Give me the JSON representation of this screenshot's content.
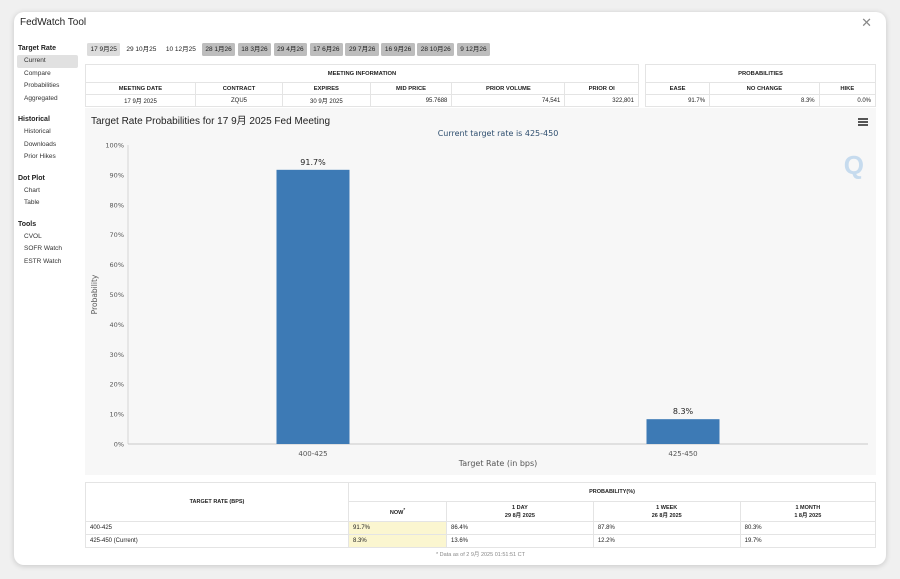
{
  "app": {
    "title": "FedWatch Tool"
  },
  "sidebar": {
    "sections": [
      {
        "heading": "Target Rate",
        "items": [
          "Current",
          "Compare",
          "Probabilities",
          "Aggregated"
        ]
      },
      {
        "heading": "Historical",
        "items": [
          "Historical",
          "Downloads",
          "Prior Hikes"
        ]
      },
      {
        "heading": "Dot Plot",
        "items": [
          "Chart",
          "Table"
        ]
      },
      {
        "heading": "Tools",
        "items": [
          "CVOL",
          "SOFR Watch",
          "ESTR Watch"
        ]
      }
    ],
    "active_item": "Current"
  },
  "tabs": [
    "17 9月25",
    "29 10月25",
    "10 12月25",
    "28 1月26",
    "18 3月26",
    "29 4月26",
    "17 6月26",
    "29 7月26",
    "16 9月26",
    "28 10月26",
    "9 12月26"
  ],
  "meeting_info": {
    "group_label": "MEETING INFORMATION",
    "headers": [
      "MEETING DATE",
      "CONTRACT",
      "EXPIRES",
      "MID PRICE",
      "PRIOR VOLUME",
      "PRIOR OI"
    ],
    "row": [
      "17 9月 2025",
      "ZQU5",
      "30 9月 2025",
      "95.7688",
      "74,541",
      "322,801"
    ]
  },
  "probabilities": {
    "group_label": "PROBABILITIES",
    "headers": [
      "EASE",
      "NO CHANGE",
      "HIKE"
    ],
    "row": [
      "91.7%",
      "8.3%",
      "0.0%"
    ]
  },
  "chart": {
    "title": "Target Rate Probabilities for 17 9月 2025 Fed Meeting",
    "subtitle": "Current target rate is 425-450",
    "accent": "#3d7ab5"
  },
  "chart_data": {
    "type": "bar",
    "title": "Target Rate Probabilities for 17 9月 2025 Fed Meeting",
    "subtitle": "Current target rate is 425-450",
    "categories": [
      "400-425",
      "425-450"
    ],
    "values": [
      91.7,
      8.3
    ],
    "data_labels": [
      "91.7%",
      "8.3%"
    ],
    "xlabel": "Target Rate (in bps)",
    "ylabel": "Probability",
    "ylim": [
      0,
      100
    ],
    "yticks": [
      "0%",
      "10%",
      "20%",
      "30%",
      "40%",
      "50%",
      "60%",
      "70%",
      "80%",
      "90%",
      "100%"
    ],
    "grid": false,
    "legend": "none"
  },
  "bottom_table": {
    "rate_header": "TARGET RATE (BPS)",
    "prob_header": "PROBABILITY(%)",
    "cols": [
      {
        "label": "NOW",
        "date": ""
      },
      {
        "label": "1 DAY",
        "date": "29 8月 2025"
      },
      {
        "label": "1 WEEK",
        "date": "26 8月 2025"
      },
      {
        "label": "1 MONTH",
        "date": "1 8月 2025"
      }
    ],
    "now_marker": "*",
    "rows": [
      {
        "rate": "400-425",
        "values": [
          "91.7%",
          "86.4%",
          "87.8%",
          "80.3%"
        ]
      },
      {
        "rate": "425-450 (Current)",
        "values": [
          "8.3%",
          "13.6%",
          "12.2%",
          "19.7%"
        ]
      }
    ],
    "footnote": "* Data as of 2 9月 2025 01:51:51 CT"
  },
  "icons": {
    "close": "x-icon",
    "menu": "hamburger-menu-icon",
    "watermark": "q-logo-icon"
  }
}
